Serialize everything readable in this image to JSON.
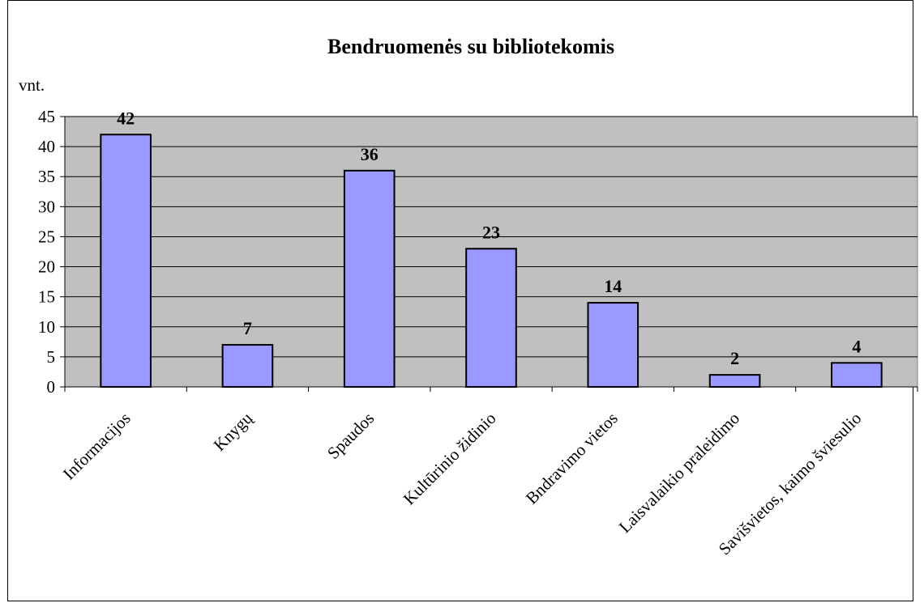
{
  "chart_data": {
    "type": "bar",
    "title": "Bendruomenės su bibliotekomis",
    "ylabel": "vnt.",
    "xlabel": "",
    "categories": [
      "Informacijos",
      "Knygų",
      "Spaudos",
      "Kultūrinio židinio",
      "Bndravimo vietos",
      "Laisvalaikio praleidimo",
      "Savišvietos, kaimo šviesulio"
    ],
    "values": [
      42,
      7,
      36,
      23,
      14,
      2,
      4
    ],
    "ylim": [
      0,
      45
    ],
    "yticks": [
      0,
      5,
      10,
      15,
      20,
      25,
      30,
      35,
      40,
      45
    ],
    "grid": true,
    "legend": "none",
    "colors": {
      "bar_fill": "#9999ff",
      "bar_stroke": "#000000",
      "plot_background": "#c0c0c0",
      "gridline": "#000000"
    }
  }
}
